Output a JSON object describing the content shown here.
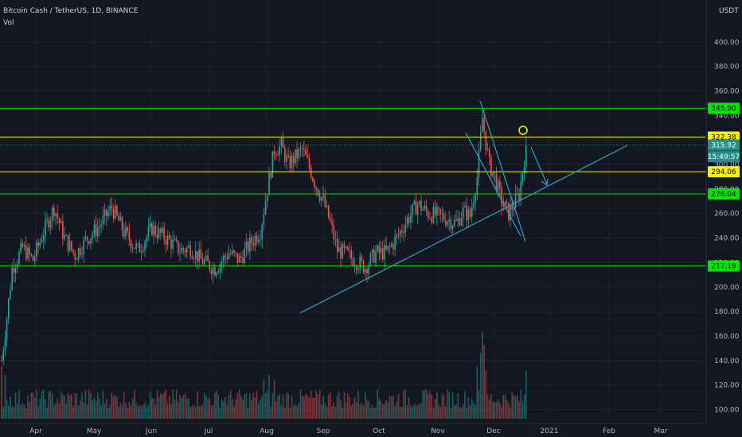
{
  "header": {
    "title": "Bitcoin Cash / TetherUS, 1D, BINANCE",
    "indicator": "Vol",
    "currency": "USDT"
  },
  "colors": {
    "background": "#131722",
    "up": "#26a69a",
    "down": "#ef5350",
    "green_line": "#00e600",
    "yellow_line": "#f5f500",
    "trendline": "#2fa3c8"
  },
  "price_tags": [
    {
      "label": "345.90",
      "price": 345.9,
      "color": "#00e600",
      "text_color": "#000000"
    },
    {
      "label": "322.38",
      "price": 322.38,
      "color": "#f5f500",
      "text_color": "#000000"
    },
    {
      "label": "315.92",
      "price": 315.92,
      "color": "#2a8d88",
      "text_color": "#ffffff"
    },
    {
      "label": "15:49:57",
      "price": 306.4,
      "color": "#2a8d88",
      "text_color": "#ffffff"
    },
    {
      "label": "294.06",
      "price": 294.06,
      "color": "#f5f500",
      "text_color": "#000000"
    },
    {
      "label": "276.04",
      "price": 276.04,
      "color": "#00e600",
      "text_color": "#000000"
    },
    {
      "label": "217.19",
      "price": 217.19,
      "color": "#00e600",
      "text_color": "#000000"
    }
  ],
  "chart_data": {
    "type": "candlestick",
    "title": "Bitcoin Cash / TetherUS, 1D, BINANCE",
    "y_ticks": [
      "400.00",
      "380.00",
      "360.00",
      "340.00",
      "320.00",
      "300.00",
      "280.00",
      "260.00",
      "240.00",
      "220.00",
      "200.00",
      "180.00",
      "160.00",
      "140.00",
      "120.00",
      "100.00"
    ],
    "x_ticks": [
      "Apr",
      "May",
      "Jun",
      "Jul",
      "Aug",
      "Sep",
      "Oct",
      "Nov",
      "Dec",
      "2021",
      "Feb",
      "Mar"
    ],
    "horizontal_levels": [
      345.9,
      322.38,
      294.06,
      276.04,
      217.19
    ],
    "close_price": 315.92,
    "anchor_closes": [
      {
        "t": 0,
        "c": 140
      },
      {
        "t": 3,
        "c": 175
      },
      {
        "t": 6,
        "c": 215
      },
      {
        "t": 12,
        "c": 232
      },
      {
        "t": 18,
        "c": 222
      },
      {
        "t": 24,
        "c": 245
      },
      {
        "t": 30,
        "c": 265
      },
      {
        "t": 36,
        "c": 240
      },
      {
        "t": 42,
        "c": 226
      },
      {
        "t": 48,
        "c": 238
      },
      {
        "t": 56,
        "c": 250
      },
      {
        "t": 63,
        "c": 265
      },
      {
        "t": 70,
        "c": 245
      },
      {
        "t": 78,
        "c": 230
      },
      {
        "t": 86,
        "c": 248
      },
      {
        "t": 94,
        "c": 240
      },
      {
        "t": 102,
        "c": 230
      },
      {
        "t": 108,
        "c": 232
      },
      {
        "t": 114,
        "c": 222
      },
      {
        "t": 122,
        "c": 215
      },
      {
        "t": 130,
        "c": 228
      },
      {
        "t": 136,
        "c": 222
      },
      {
        "t": 142,
        "c": 235
      },
      {
        "t": 148,
        "c": 246
      },
      {
        "t": 152,
        "c": 280
      },
      {
        "t": 156,
        "c": 312
      },
      {
        "t": 160,
        "c": 315
      },
      {
        "t": 164,
        "c": 300
      },
      {
        "t": 168,
        "c": 306
      },
      {
        "t": 172,
        "c": 312
      },
      {
        "t": 176,
        "c": 298
      },
      {
        "t": 180,
        "c": 282
      },
      {
        "t": 184,
        "c": 270
      },
      {
        "t": 188,
        "c": 252
      },
      {
        "t": 192,
        "c": 230
      },
      {
        "t": 196,
        "c": 228
      },
      {
        "t": 202,
        "c": 222
      },
      {
        "t": 208,
        "c": 216
      },
      {
        "t": 214,
        "c": 228
      },
      {
        "t": 220,
        "c": 228
      },
      {
        "t": 226,
        "c": 240
      },
      {
        "t": 232,
        "c": 255
      },
      {
        "t": 238,
        "c": 268
      },
      {
        "t": 244,
        "c": 260
      },
      {
        "t": 250,
        "c": 258
      },
      {
        "t": 256,
        "c": 255
      },
      {
        "t": 260,
        "c": 252
      },
      {
        "t": 264,
        "c": 262
      },
      {
        "t": 268,
        "c": 258
      },
      {
        "t": 272,
        "c": 290
      },
      {
        "t": 275,
        "c": 338
      },
      {
        "t": 277,
        "c": 318
      },
      {
        "t": 279,
        "c": 300
      },
      {
        "t": 282,
        "c": 290
      },
      {
        "t": 286,
        "c": 270
      },
      {
        "t": 290,
        "c": 260
      },
      {
        "t": 293,
        "c": 268
      },
      {
        "t": 296,
        "c": 275
      },
      {
        "t": 298,
        "c": 295
      },
      {
        "t": 300,
        "c": 315.92
      }
    ],
    "volume_spikes": [
      {
        "t": 0,
        "v": 0.6
      },
      {
        "t": 2,
        "v": 0.5
      },
      {
        "t": 150,
        "v": 0.45
      },
      {
        "t": 153,
        "v": 0.5
      },
      {
        "t": 156,
        "v": 0.45
      },
      {
        "t": 272,
        "v": 0.6
      },
      {
        "t": 274,
        "v": 0.75
      },
      {
        "t": 275,
        "v": 1.0
      },
      {
        "t": 276,
        "v": 0.85
      },
      {
        "t": 277,
        "v": 0.55
      },
      {
        "t": 300,
        "v": 0.55
      }
    ]
  }
}
